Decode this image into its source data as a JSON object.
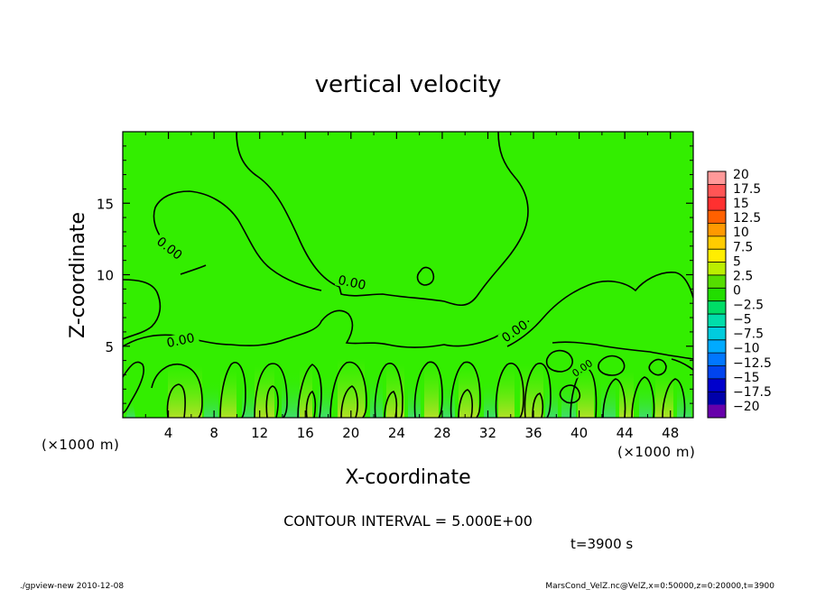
{
  "chart_data": {
    "type": "heatmap",
    "title": "vertical velocity",
    "xlabel": "X-coordinate",
    "ylabel": "Z-coordinate",
    "x_unit": "(×1000 m)",
    "y_unit": "(×1000 m)",
    "xlim": [
      0,
      50
    ],
    "ylim": [
      0,
      20
    ],
    "x_ticks": [
      4,
      8,
      12,
      16,
      20,
      24,
      28,
      32,
      36,
      40,
      44,
      48
    ],
    "y_ticks": [
      5,
      10,
      15
    ],
    "contour_labels": [
      "0.00",
      "0.00",
      "0.00",
      "0.00",
      "0.00"
    ],
    "colorbar": {
      "levels": [
        "20",
        "17.5",
        "15",
        "12.5",
        "10",
        "7.5",
        "5",
        "2.5",
        "0",
        "−2.5",
        "−5",
        "−7.5",
        "−10",
        "−12.5",
        "−15",
        "−17.5",
        "−20"
      ],
      "colors": [
        "#ff9999",
        "#ff5555",
        "#ff3030",
        "#ff6000",
        "#ff9900",
        "#ffcc00",
        "#ffee00",
        "#bbee00",
        "#55dd00",
        "#22dd00",
        "#00dd66",
        "#00ddaa",
        "#00ccdd",
        "#00aaff",
        "#0077ff",
        "#0044ee",
        "#0000cc",
        "#0000aa",
        "#6600aa"
      ]
    },
    "grid": false,
    "legend": "right"
  },
  "footer": {
    "contour_interval": "CONTOUR INTERVAL = 5.000E+00",
    "time": "t=3900 s",
    "program": "./gpview-new  2010-12-08",
    "source": "MarsCond_VelZ.nc@VelZ,x=0:50000,z=0:20000,t=3900"
  },
  "colors": {
    "background_field": "#33ee00",
    "updraft": "#a8e020",
    "downdraft": "#3cdd66"
  }
}
